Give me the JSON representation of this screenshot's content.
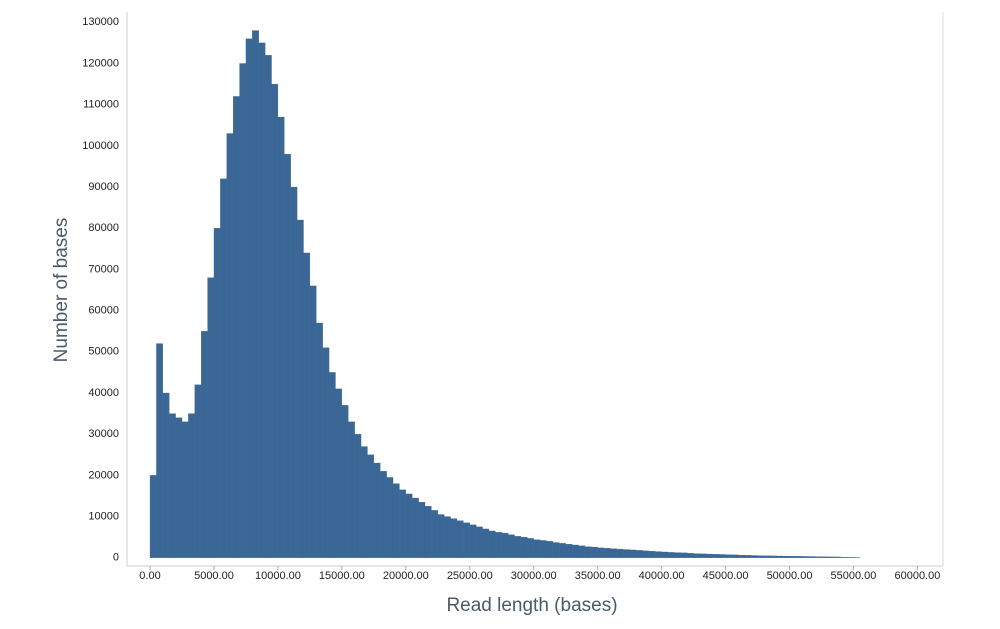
{
  "chart_data": {
    "type": "histogram",
    "x_label": "Read length (bases)",
    "y_label": "Number of bases",
    "color": "#3a6795",
    "bins": [
      0,
      500,
      1000,
      1500,
      2000,
      2500,
      3000,
      3500,
      4000,
      4500,
      5000,
      5500,
      6000,
      6500,
      7000,
      7500,
      8000,
      8500,
      9000,
      9500,
      10000,
      10500,
      11000,
      11500,
      12000,
      12500,
      13000,
      13500,
      14000,
      14500,
      15000,
      15500,
      16000,
      16500,
      17000,
      17500,
      18000,
      18500,
      19000,
      19500,
      20000,
      20500,
      21000,
      21500,
      22000,
      22500,
      23000,
      23500,
      24000,
      24500,
      25000,
      25500,
      26000,
      26500,
      27000,
      27500,
      28000,
      28500,
      29000,
      29500,
      30000,
      30500,
      31000,
      31500,
      32000,
      32500,
      33000,
      33500,
      34000,
      34500,
      35000,
      35500,
      36000,
      36500,
      37000,
      37500,
      38000,
      38500,
      39000,
      39500,
      40000,
      40500,
      41000,
      41500,
      42000,
      42500,
      43000,
      43500,
      44000,
      44500,
      45000,
      45500,
      46000,
      46500,
      47000,
      47500,
      48000,
      48500,
      49000,
      49500,
      50000,
      50500,
      51000,
      51500,
      52000,
      52500,
      53000,
      53500,
      54000,
      54500,
      55000,
      55500
    ],
    "counts": [
      20000,
      52000,
      40000,
      35000,
      34000,
      33000,
      35000,
      42000,
      55000,
      68000,
      80000,
      92000,
      103000,
      112000,
      120000,
      126000,
      128000,
      125000,
      122000,
      115000,
      107000,
      98000,
      90000,
      82000,
      74000,
      66000,
      57000,
      51000,
      45000,
      41000,
      37000,
      33000,
      30000,
      27000,
      25000,
      23000,
      21000,
      19500,
      18000,
      16500,
      15500,
      14500,
      13500,
      12500,
      11500,
      10500,
      10000,
      9500,
      9000,
      8500,
      8000,
      7500,
      7000,
      6500,
      6200,
      6000,
      5600,
      5200,
      5000,
      4700,
      4400,
      4200,
      4000,
      3700,
      3500,
      3300,
      3100,
      2900,
      2700,
      2600,
      2400,
      2300,
      2200,
      2100,
      2000,
      1900,
      1800,
      1700,
      1600,
      1500,
      1400,
      1300,
      1250,
      1200,
      1100,
      1000,
      950,
      900,
      850,
      800,
      750,
      700,
      650,
      600,
      550,
      500,
      480,
      450,
      420,
      400,
      380,
      350,
      320,
      300,
      280,
      250,
      220,
      200,
      150,
      100,
      80
    ],
    "xlim": [
      -1800,
      62000
    ],
    "ylim": [
      -2000,
      132500
    ],
    "xticks": [
      {
        "value": 0,
        "label": "0.00"
      },
      {
        "value": 5000,
        "label": "5000.00"
      },
      {
        "value": 10000,
        "label": "10000.00"
      },
      {
        "value": 15000,
        "label": "15000.00"
      },
      {
        "value": 20000,
        "label": "20000.00"
      },
      {
        "value": 25000,
        "label": "25000.00"
      },
      {
        "value": 30000,
        "label": "30000.00"
      },
      {
        "value": 35000,
        "label": "35000.00"
      },
      {
        "value": 40000,
        "label": "40000.00"
      },
      {
        "value": 45000,
        "label": "45000.00"
      },
      {
        "value": 50000,
        "label": "50000.00"
      },
      {
        "value": 55000,
        "label": "55000.00"
      },
      {
        "value": 60000,
        "label": "60000.00"
      }
    ],
    "yticks": [
      0,
      10000,
      20000,
      30000,
      40000,
      50000,
      60000,
      70000,
      80000,
      90000,
      100000,
      110000,
      120000,
      130000
    ]
  }
}
